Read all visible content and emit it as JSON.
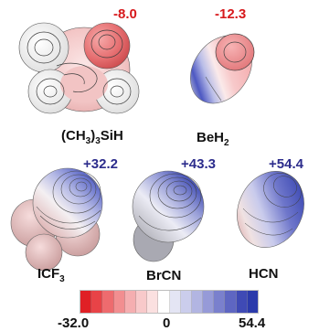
{
  "colors": {
    "negative": "#d7191c",
    "positive": "#2c2c8c",
    "scale_min": "#e8262c",
    "scale_mid": "#ffffff",
    "scale_max": "#2b4bb3"
  },
  "molecules": [
    {
      "id": "ch3-3sih",
      "name_parts": [
        "(CH",
        "3",
        ")",
        "3",
        "SiH"
      ],
      "value": "-8.0",
      "sign": "negative"
    },
    {
      "id": "beh2",
      "name_parts": [
        "BeH",
        "2"
      ],
      "value": "-12.3",
      "sign": "negative"
    },
    {
      "id": "icf3",
      "name_parts": [
        "ICF",
        "3"
      ],
      "value": "+32.2",
      "sign": "positive"
    },
    {
      "id": "brcn",
      "name_parts": [
        "BrCN"
      ],
      "value": "+43.3",
      "sign": "positive"
    },
    {
      "id": "hcn",
      "name_parts": [
        "HCN"
      ],
      "value": "+54.4",
      "sign": "positive"
    }
  ],
  "color_scale": {
    "min": -32.0,
    "max": 54.4,
    "tick_labels": [
      "-32.0",
      "0",
      "54.4"
    ],
    "segments": [
      "#e02025",
      "#e84347",
      "#ee6b6e",
      "#f28e90",
      "#f5aeb0",
      "#f8c9ca",
      "#fbe0e0",
      "#ffffff",
      "#e4e5f4",
      "#cbcdec",
      "#b2b5e2",
      "#969ad8",
      "#7a80cd",
      "#5e66c2",
      "#3f4ab5",
      "#2b3aab"
    ]
  }
}
